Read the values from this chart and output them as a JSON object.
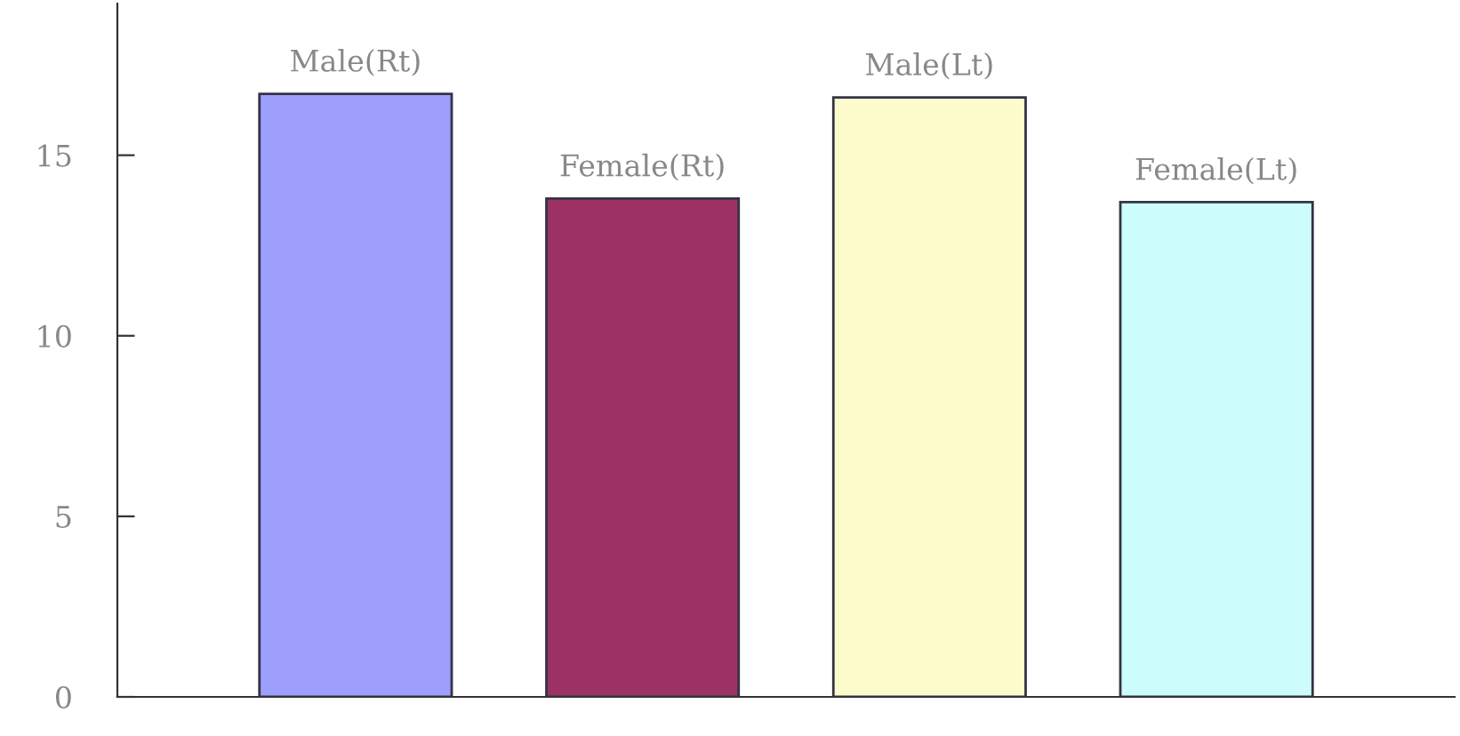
{
  "chart_data": {
    "type": "bar",
    "categories": [
      "Male(Rt)",
      "Female(Rt)",
      "Male(Lt)",
      "Female(Lt)"
    ],
    "values": [
      16.7,
      13.8,
      16.6,
      13.7
    ],
    "colors": [
      "#9e9efc",
      "#9c3264",
      "#fcfccc",
      "#ccfcfc"
    ],
    "ylim": [
      0,
      19.2
    ],
    "yticks": [
      0,
      5,
      10,
      15
    ],
    "grid": false,
    "tick_labels": "y"
  }
}
